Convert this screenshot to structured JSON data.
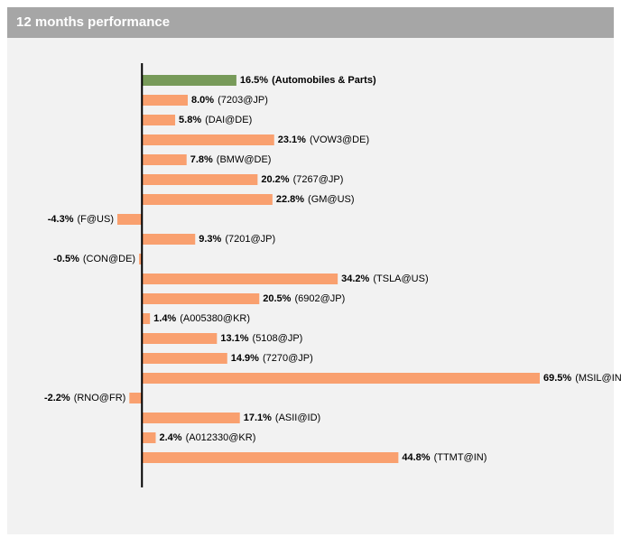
{
  "chart_data": {
    "type": "bar",
    "orientation": "horizontal",
    "title": "12 months performance",
    "categories": [
      "(Automobiles & Parts)",
      "(7203@JP)",
      "(DAI@DE)",
      "(VOW3@DE)",
      "(BMW@DE)",
      "(7267@JP)",
      "(GM@US)",
      "(F@US)",
      "(7201@JP)",
      "(CON@DE)",
      "(TSLA@US)",
      "(6902@JP)",
      "(A005380@KR)",
      "(5108@JP)",
      "(7270@JP)",
      "(MSIL@IN)",
      "(RNO@FR)",
      "(ASII@ID)",
      "(A012330@KR)",
      "(TTMT@IN)"
    ],
    "values": [
      16.5,
      8.0,
      5.8,
      23.1,
      7.8,
      20.2,
      22.8,
      -4.3,
      9.3,
      -0.5,
      34.2,
      20.5,
      1.4,
      13.1,
      14.9,
      69.5,
      -2.2,
      17.1,
      2.4,
      44.8
    ],
    "value_labels": [
      "16.5%",
      "8.0%",
      "5.8%",
      "23.1%",
      "7.8%",
      "20.2%",
      "22.8%",
      "-4.3%",
      "9.3%",
      "-0.5%",
      "34.2%",
      "20.5%",
      "1.4%",
      "13.1%",
      "14.9%",
      "69.5%",
      "-2.2%",
      "17.1%",
      "2.4%",
      "44.8%"
    ],
    "color": "#f9a06f",
    "highlight_color": "#779a59",
    "highlight_index": 0
  }
}
